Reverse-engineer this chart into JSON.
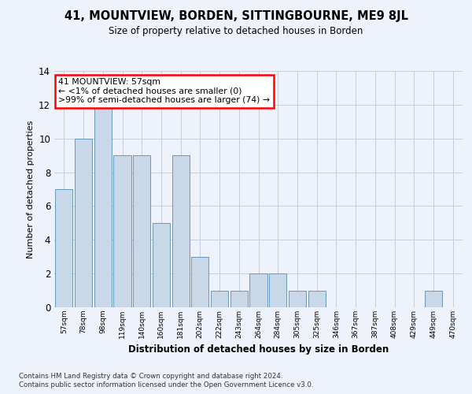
{
  "title1": "41, MOUNTVIEW, BORDEN, SITTINGBOURNE, ME9 8JL",
  "title2": "Size of property relative to detached houses in Borden",
  "xlabel": "Distribution of detached houses by size in Borden",
  "ylabel": "Number of detached properties",
  "categories": [
    "57sqm",
    "78sqm",
    "98sqm",
    "119sqm",
    "140sqm",
    "160sqm",
    "181sqm",
    "202sqm",
    "222sqm",
    "243sqm",
    "264sqm",
    "284sqm",
    "305sqm",
    "325sqm",
    "346sqm",
    "367sqm",
    "387sqm",
    "408sqm",
    "429sqm",
    "449sqm",
    "470sqm"
  ],
  "values": [
    7,
    10,
    12,
    9,
    9,
    5,
    9,
    3,
    1,
    1,
    2,
    2,
    1,
    1,
    0,
    0,
    0,
    0,
    0,
    1,
    0
  ],
  "bar_color": "#c8d8e8",
  "bar_edge_color": "#6699bb",
  "annotation_text": "41 MOUNTVIEW: 57sqm\n← <1% of detached houses are smaller (0)\n>99% of semi-detached houses are larger (74) →",
  "annotation_box_color": "white",
  "annotation_box_edge_color": "red",
  "ylim": [
    0,
    14
  ],
  "yticks": [
    0,
    2,
    4,
    6,
    8,
    10,
    12,
    14
  ],
  "footer1": "Contains HM Land Registry data © Crown copyright and database right 2024.",
  "footer2": "Contains public sector information licensed under the Open Government Licence v3.0.",
  "bg_color": "#eef2fa",
  "plot_bg_color": "#eef2fa",
  "grid_color": "#c5cde0"
}
